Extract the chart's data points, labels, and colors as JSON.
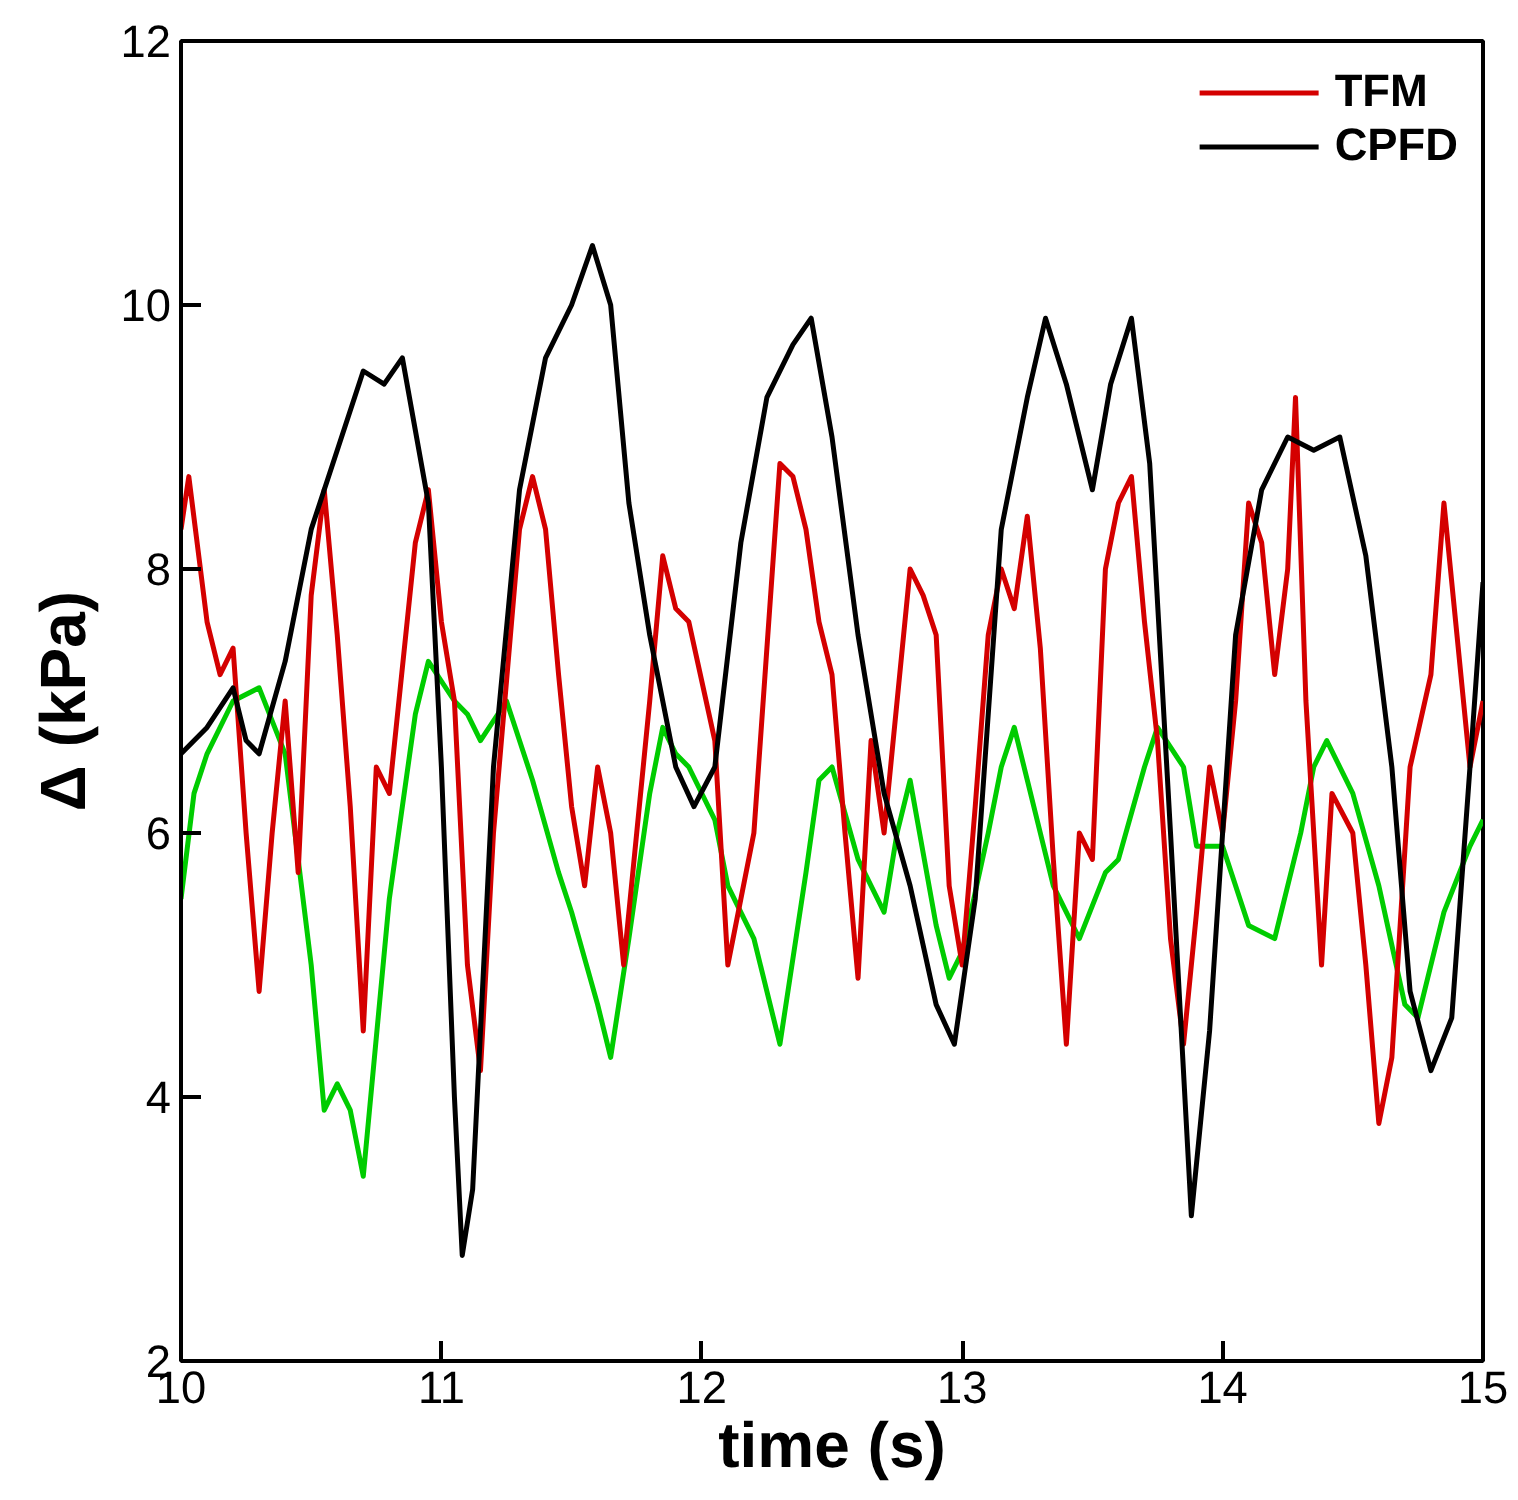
{
  "chart_data": {
    "type": "line",
    "xlabel": "time (s)",
    "ylabel": "Δ (kPa)",
    "xlim": [
      10,
      15
    ],
    "ylim": [
      2,
      12
    ],
    "xticks": [
      10,
      11,
      12,
      13,
      14,
      15
    ],
    "yticks": [
      2,
      4,
      6,
      8,
      10,
      12
    ],
    "grid": false,
    "legend": "top right",
    "marker": "none",
    "line_style": "solid",
    "series": [
      {
        "color": "#00cc00",
        "x": [
          10.0,
          10.05,
          10.1,
          10.2,
          10.3,
          10.4,
          10.45,
          10.5,
          10.55,
          10.6,
          10.65,
          10.7,
          10.8,
          10.9,
          10.95,
          11.05,
          11.1,
          11.15,
          11.25,
          11.35,
          11.45,
          11.5,
          11.6,
          11.65,
          11.72,
          11.8,
          11.85,
          11.9,
          11.95,
          12.05,
          12.1,
          12.2,
          12.25,
          12.3,
          12.4,
          12.45,
          12.5,
          12.6,
          12.7,
          12.75,
          12.8,
          12.9,
          12.95,
          13.0,
          13.1,
          13.15,
          13.2,
          13.25,
          13.3,
          13.35,
          13.45,
          13.55,
          13.6,
          13.7,
          13.75,
          13.85,
          13.9,
          14.0,
          14.1,
          14.2,
          14.3,
          14.35,
          14.4,
          14.5,
          14.6,
          14.7,
          14.75,
          14.85,
          14.95,
          15.0
        ],
        "values": [
          5.5,
          6.3,
          6.6,
          7.0,
          7.1,
          6.6,
          5.8,
          5.0,
          3.9,
          4.1,
          3.9,
          3.4,
          5.5,
          6.9,
          7.3,
          7.0,
          6.9,
          6.7,
          7.0,
          6.4,
          5.7,
          5.4,
          4.7,
          4.3,
          5.2,
          6.3,
          6.8,
          6.6,
          6.5,
          6.1,
          5.6,
          5.2,
          4.8,
          4.4,
          5.7,
          6.4,
          6.5,
          5.8,
          5.4,
          6.0,
          6.4,
          5.3,
          4.9,
          5.1,
          6.0,
          6.5,
          6.8,
          6.4,
          6.0,
          5.6,
          5.2,
          5.7,
          5.8,
          6.5,
          6.8,
          6.5,
          5.9,
          5.9,
          5.3,
          5.2,
          6.0,
          6.5,
          6.7,
          6.3,
          5.6,
          4.7,
          4.6,
          5.4,
          5.9,
          6.1
        ]
      },
      {
        "name": "TFM",
        "color": "#d40000",
        "x": [
          10.0,
          10.03,
          10.1,
          10.15,
          10.2,
          10.25,
          10.3,
          10.35,
          10.4,
          10.45,
          10.5,
          10.55,
          10.6,
          10.65,
          10.7,
          10.75,
          10.8,
          10.9,
          10.95,
          11.0,
          11.05,
          11.1,
          11.15,
          11.2,
          11.3,
          11.35,
          11.4,
          11.45,
          11.5,
          11.55,
          11.6,
          11.65,
          11.7,
          11.75,
          11.8,
          11.85,
          11.9,
          11.95,
          12.05,
          12.1,
          12.15,
          12.2,
          12.3,
          12.35,
          12.4,
          12.45,
          12.5,
          12.55,
          12.6,
          12.65,
          12.7,
          12.8,
          12.85,
          12.9,
          12.95,
          13.0,
          13.05,
          13.1,
          13.15,
          13.2,
          13.25,
          13.3,
          13.35,
          13.4,
          13.45,
          13.5,
          13.55,
          13.6,
          13.65,
          13.7,
          13.75,
          13.8,
          13.85,
          13.9,
          13.95,
          14.0,
          14.05,
          14.1,
          14.15,
          14.2,
          14.25,
          14.28,
          14.32,
          14.38,
          14.42,
          14.5,
          14.55,
          14.6,
          14.65,
          14.72,
          14.8,
          14.85,
          14.9,
          14.95,
          15.0
        ],
        "values": [
          8.3,
          8.7,
          7.6,
          7.2,
          7.4,
          6.0,
          4.8,
          6.0,
          7.0,
          5.7,
          7.8,
          8.6,
          7.5,
          6.2,
          4.5,
          6.5,
          6.3,
          8.2,
          8.6,
          7.6,
          7.0,
          5.0,
          4.2,
          6.0,
          8.3,
          8.7,
          8.3,
          7.2,
          6.2,
          5.6,
          6.5,
          6.0,
          5.0,
          6.0,
          7.0,
          8.1,
          7.7,
          7.6,
          6.7,
          5.0,
          5.5,
          6.0,
          8.8,
          8.7,
          8.3,
          7.6,
          7.2,
          6.0,
          4.9,
          6.7,
          6.0,
          8.0,
          7.8,
          7.5,
          5.6,
          5.0,
          6.2,
          7.5,
          8.0,
          7.7,
          8.4,
          7.4,
          5.8,
          4.4,
          6.0,
          5.8,
          8.0,
          8.5,
          8.7,
          7.6,
          6.7,
          5.2,
          4.4,
          5.4,
          6.5,
          6.0,
          7.0,
          8.5,
          8.2,
          7.2,
          8.0,
          9.3,
          7.0,
          5.0,
          6.3,
          6.0,
          5.0,
          3.8,
          4.3,
          6.5,
          7.2,
          8.5,
          7.5,
          6.5,
          7.0
        ]
      },
      {
        "name": "CPFD",
        "color": "#000000",
        "x": [
          10.0,
          10.1,
          10.2,
          10.25,
          10.3,
          10.4,
          10.5,
          10.6,
          10.7,
          10.78,
          10.85,
          10.95,
          11.0,
          11.05,
          11.08,
          11.12,
          11.2,
          11.3,
          11.4,
          11.5,
          11.58,
          11.65,
          11.72,
          11.8,
          11.9,
          11.97,
          12.05,
          12.15,
          12.25,
          12.35,
          12.42,
          12.5,
          12.6,
          12.7,
          12.8,
          12.9,
          12.97,
          13.05,
          13.15,
          13.25,
          13.32,
          13.4,
          13.5,
          13.57,
          13.65,
          13.72,
          13.8,
          13.88,
          13.95,
          14.05,
          14.15,
          14.25,
          14.35,
          14.45,
          14.55,
          14.65,
          14.72,
          14.8,
          14.88,
          14.95,
          15.0
        ],
        "values": [
          6.6,
          6.8,
          7.1,
          6.7,
          6.6,
          7.3,
          8.3,
          8.9,
          9.5,
          9.4,
          9.6,
          8.5,
          6.5,
          4.0,
          2.8,
          3.3,
          6.5,
          8.6,
          9.6,
          10.0,
          10.45,
          10.0,
          8.5,
          7.5,
          6.5,
          6.2,
          6.5,
          8.2,
          9.3,
          9.7,
          9.9,
          9.0,
          7.5,
          6.3,
          5.6,
          4.7,
          4.4,
          5.5,
          8.3,
          9.3,
          9.9,
          9.4,
          8.6,
          9.4,
          9.9,
          8.8,
          6.0,
          3.1,
          4.5,
          7.5,
          8.6,
          9.0,
          8.9,
          9.0,
          8.1,
          6.5,
          4.8,
          4.2,
          4.6,
          6.5,
          7.9
        ]
      }
    ]
  }
}
